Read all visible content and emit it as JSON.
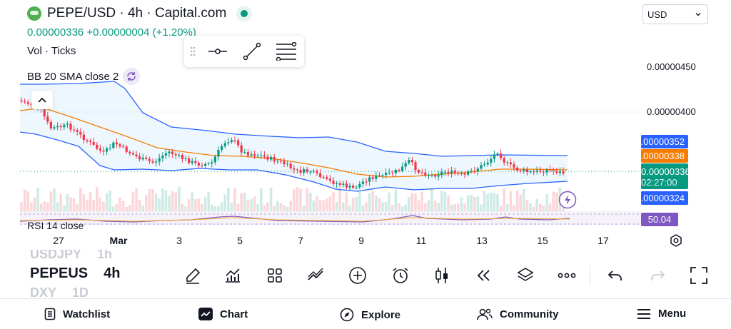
{
  "header": {
    "title": "PEPE/USD · 4h · Capital.com",
    "price_info": "0.00000336 +0.00000004 (+1.20%)",
    "volume_label": "Vol · Ticks",
    "indicator_label": "BB 20 SMA close 2"
  },
  "currency": {
    "selected": "USD"
  },
  "price_axis": {
    "labels": [
      "0.00000450",
      "0.00000400"
    ]
  },
  "price_tags": {
    "bb_upper": "0.00000352",
    "bb_basis": "0.00000338",
    "last_price": "0.00000336",
    "countdown": "02:27:00",
    "bb_lower": "0.00000324"
  },
  "rsi": {
    "label": "RSI 14 close",
    "value": "50.04"
  },
  "time_axis": {
    "labels": [
      "27",
      "Mar",
      "3",
      "5",
      "7",
      "9",
      "11",
      "13",
      "15",
      "17"
    ]
  },
  "symbol_picker": {
    "prev": {
      "symbol": "USDJPY",
      "interval": "1h"
    },
    "current": {
      "symbol": "PEPEUS",
      "interval": "4h"
    },
    "next": {
      "symbol": "DXY",
      "interval": "1D"
    }
  },
  "bottom_nav": {
    "items": [
      {
        "label": "Watchlist",
        "icon": "watchlist-icon"
      },
      {
        "label": "Chart",
        "icon": "chart-icon"
      },
      {
        "label": "Explore",
        "icon": "compass-icon"
      },
      {
        "label": "Community",
        "icon": "people-icon"
      },
      {
        "label": "Menu",
        "icon": "hamburger-icon"
      }
    ]
  },
  "colors": {
    "up": "#089981",
    "down": "#f23645",
    "bb_band": "#2962ff",
    "bb_basis": "#f57c00",
    "rsi": "#7e57c2"
  },
  "chart_data": {
    "type": "candlestick",
    "symbol": "PEPE/USD",
    "interval": "4h",
    "indicators": [
      "BB 20 SMA close 2",
      "Vol",
      "RSI 14"
    ],
    "x_ticks": [
      "27",
      "Mar",
      "3",
      "5",
      "7",
      "9",
      "11",
      "13",
      "15",
      "17"
    ],
    "y_ticks": [
      "0.00000450",
      "0.00000400"
    ],
    "last_close": "0.00000336",
    "bb_upper_last": "0.00000352",
    "bb_basis_last": "0.00000338",
    "bb_lower_last": "0.00000324",
    "rsi_last": "50.04"
  }
}
